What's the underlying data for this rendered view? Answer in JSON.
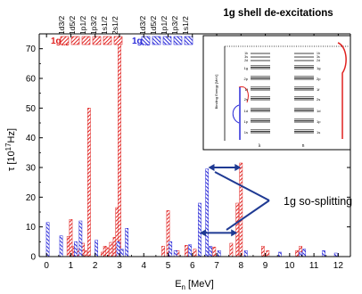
{
  "chart_data": {
    "type": "bar",
    "title": "1g shell de-excitations",
    "xlabel": "E",
    "xlabel_sub": "n",
    "xlabel_unit": " [MeV]",
    "ylabel": "τ [10",
    "ylabel_sup": "17",
    "ylabel_unit": "Hz]",
    "xlim": [
      -0.3,
      12.5
    ],
    "ylim": [
      0,
      75
    ],
    "x_ticks": [
      0,
      1,
      2,
      3,
      4,
      5,
      6,
      7,
      8,
      9,
      10,
      11,
      12
    ],
    "y_ticks": [
      0,
      10,
      20,
      30,
      40,
      50,
      60,
      70
    ],
    "legend": {
      "groups": [
        {
          "label": "1g",
          "label_sub": "9/2",
          "color": "#e0211f",
          "entries": [
            "1d3/2",
            "1d5/2",
            "1p1/2",
            "1p3/2",
            "1s1/2",
            "2s1/2"
          ]
        },
        {
          "label": "1g",
          "label_sub": "7/2",
          "color": "#2a2ad8",
          "entries": [
            "1d3/2",
            "1d5/2",
            "1p1/2",
            "1p3/2",
            "1s1/2"
          ]
        }
      ]
    },
    "series": [
      {
        "name": "1g9/2",
        "color": "#e0211f",
        "points": [
          {
            "x": 0.9,
            "y": 6.8
          },
          {
            "x": 1.0,
            "y": 12.5
          },
          {
            "x": 1.15,
            "y": 3.5
          },
          {
            "x": 1.3,
            "y": 2.6
          },
          {
            "x": 1.5,
            "y": 4.5
          },
          {
            "x": 1.6,
            "y": 2.0
          },
          {
            "x": 1.75,
            "y": 50.0
          },
          {
            "x": 2.3,
            "y": 1.5
          },
          {
            "x": 2.4,
            "y": 3.5
          },
          {
            "x": 2.5,
            "y": 3.0
          },
          {
            "x": 2.65,
            "y": 4.8
          },
          {
            "x": 2.8,
            "y": 6.5
          },
          {
            "x": 2.9,
            "y": 16.5
          },
          {
            "x": 3.0,
            "y": 71.5
          },
          {
            "x": 4.8,
            "y": 3.5
          },
          {
            "x": 5.0,
            "y": 15.5
          },
          {
            "x": 5.4,
            "y": 2.0
          },
          {
            "x": 5.75,
            "y": 3.8
          },
          {
            "x": 6.1,
            "y": 2.5
          },
          {
            "x": 6.9,
            "y": 3.2
          },
          {
            "x": 7.6,
            "y": 4.5
          },
          {
            "x": 7.85,
            "y": 18.0
          },
          {
            "x": 8.0,
            "y": 31.5
          },
          {
            "x": 8.9,
            "y": 3.5
          },
          {
            "x": 9.1,
            "y": 2.0
          },
          {
            "x": 10.3,
            "y": 2.0
          },
          {
            "x": 10.45,
            "y": 3.5
          }
        ]
      },
      {
        "name": "1g7/2",
        "color": "#2a2ad8",
        "points": [
          {
            "x": 0.05,
            "y": 11.5
          },
          {
            "x": 0.6,
            "y": 7.0
          },
          {
            "x": 1.2,
            "y": 5.0
          },
          {
            "x": 1.4,
            "y": 12.0
          },
          {
            "x": 2.05,
            "y": 5.5
          },
          {
            "x": 2.95,
            "y": 5.0
          },
          {
            "x": 3.1,
            "y": 2.5
          },
          {
            "x": 3.3,
            "y": 9.5
          },
          {
            "x": 5.1,
            "y": 5.0
          },
          {
            "x": 5.3,
            "y": 2.0
          },
          {
            "x": 5.9,
            "y": 4.0
          },
          {
            "x": 6.3,
            "y": 18.0
          },
          {
            "x": 6.6,
            "y": 29.5
          },
          {
            "x": 6.75,
            "y": 3.5
          },
          {
            "x": 7.1,
            "y": 2.0
          },
          {
            "x": 8.2,
            "y": 2.0
          },
          {
            "x": 9.6,
            "y": 1.5
          },
          {
            "x": 10.45,
            "y": 1.5
          },
          {
            "x": 10.6,
            "y": 2.5
          },
          {
            "x": 11.4,
            "y": 2.0
          },
          {
            "x": 11.9,
            "y": 1.2
          }
        ]
      }
    ],
    "annotation": {
      "text": "1g so-splitting",
      "arrows": [
        {
          "x_from": 6.65,
          "x_to": 8.0,
          "y": 30
        },
        {
          "x_from": 6.3,
          "x_to": 7.85,
          "y": 8
        }
      ]
    },
    "inset": {
      "ylabel": "Binding Energy [MeV]",
      "left_levels": [
        "1g",
        "2p",
        "1f",
        "2s",
        "1d",
        "1p",
        "1s"
      ],
      "left_levels_top": [
        "1h",
        "3s",
        "2d"
      ],
      "right_levels": [
        "1g",
        "2p",
        "1f",
        "2s",
        "1d",
        "1p",
        "1s"
      ],
      "right_levels_top": [
        "1h",
        "3s",
        "2d"
      ],
      "left_axis_label": "λ",
      "right_axis_label": "n"
    }
  }
}
